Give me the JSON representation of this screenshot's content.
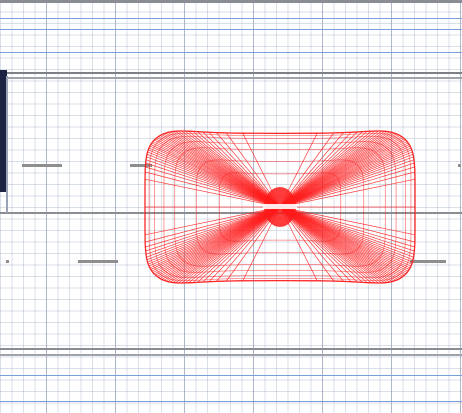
{
  "canvas": {
    "background": "#ffffff",
    "grid_color": "#a5b1c6",
    "blue_guide_color": "#6f95d8",
    "dark_guide_color": "#7b7f86",
    "side_tab_color": "#1c2340"
  },
  "pattern": {
    "name": "radiation-pattern",
    "color": "#ff1a1a",
    "center_label": ""
  }
}
